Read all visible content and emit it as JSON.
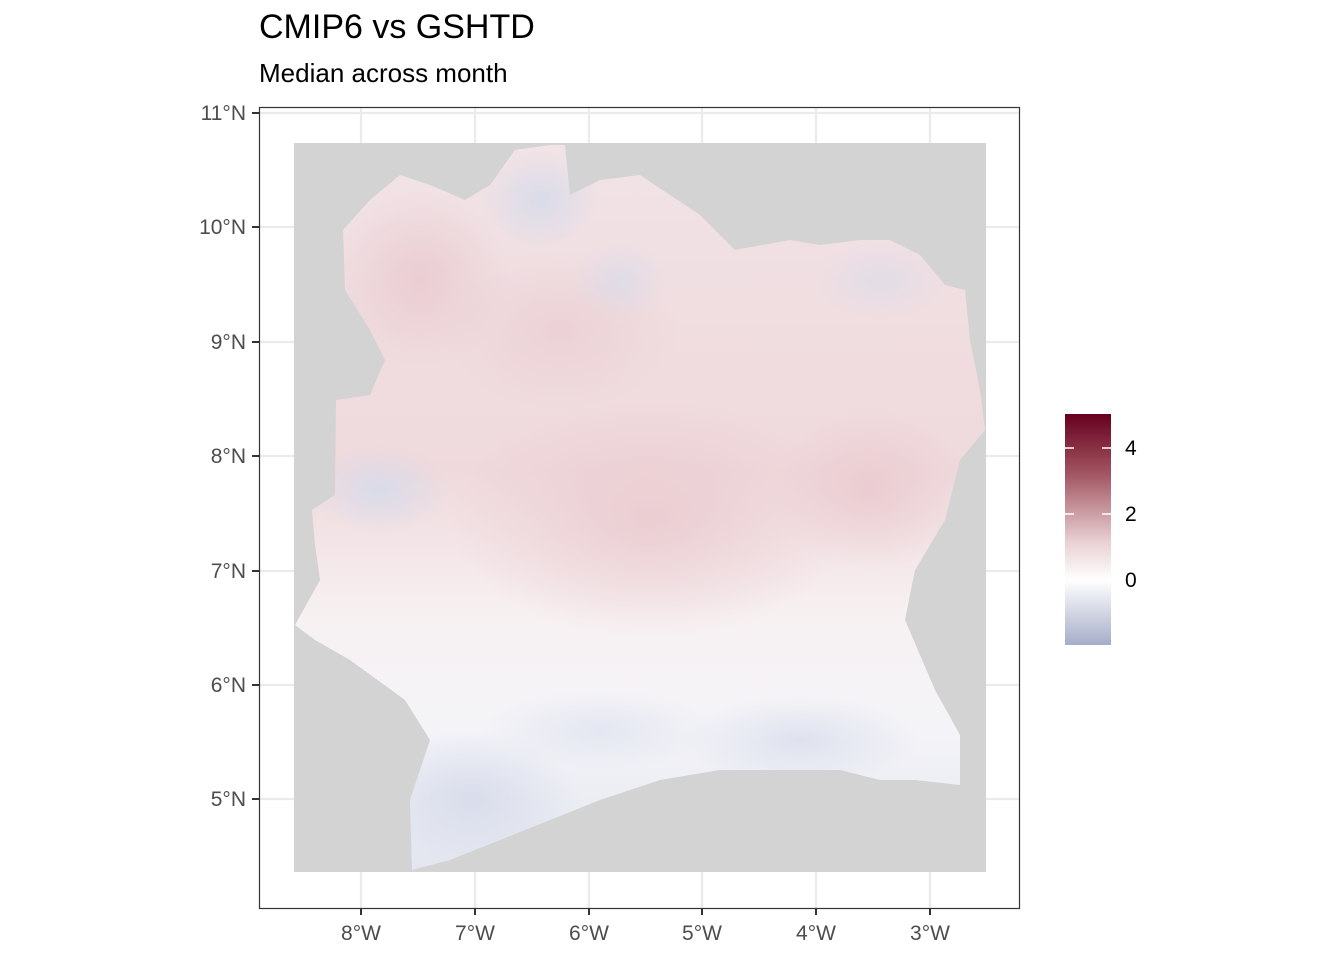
{
  "title": "CMIP6 vs GSHTD",
  "subtitle": "Median across month",
  "map": {
    "x_ticks": [
      "8°W",
      "7°W",
      "6°W",
      "5°W",
      "4°W",
      "3°W"
    ],
    "y_ticks": [
      "11°N",
      "10°N",
      "9°N",
      "8°N",
      "7°N",
      "6°N",
      "5°N"
    ],
    "panel_background": "#ffffff",
    "grid_color": "#ebebeb",
    "na_color": "#d3d3d3"
  },
  "legend": {
    "labels": [
      "4",
      "2",
      "0"
    ],
    "color_high": "#67001f",
    "color_mid": "#ffffff",
    "color_low": "#a6adc8"
  }
}
